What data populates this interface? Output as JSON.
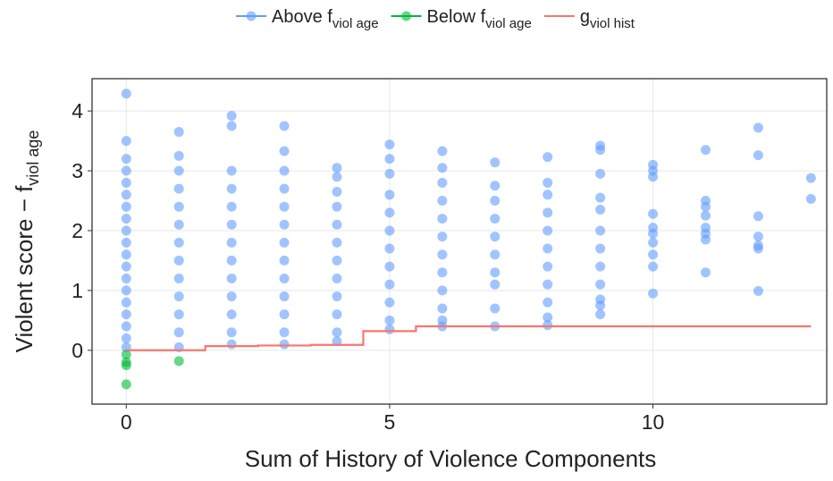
{
  "chart_data": {
    "type": "scatter",
    "xlabel": "Sum of History of Violence Components",
    "ylabel": "Violent score − f",
    "ylabel_sub": "viol age",
    "xlim": [
      -0.65,
      13.3
    ],
    "xticks": [
      0,
      5,
      10
    ],
    "ylim": [
      -0.9,
      4.54
    ],
    "yticks": [
      0,
      1,
      2,
      3,
      4
    ],
    "grid": true,
    "legend": "top",
    "series": [
      {
        "name": "Above f",
        "name_sub": "viol age",
        "color": "#619cff",
        "kind": "points",
        "x": [
          0,
          0,
          0,
          0,
          0,
          0,
          0,
          0,
          0,
          0,
          0,
          0,
          0,
          0,
          0,
          0,
          0,
          0,
          0,
          1,
          1,
          1,
          1,
          1,
          1,
          1,
          1,
          1,
          1,
          1,
          1,
          1,
          2,
          2,
          2,
          2,
          2,
          2,
          2,
          2,
          2,
          2,
          2,
          2,
          2,
          3,
          3,
          3,
          3,
          3,
          3,
          3,
          3,
          3,
          3,
          3,
          3,
          3,
          4,
          4,
          4,
          4,
          4,
          4,
          4,
          4,
          4,
          4,
          4,
          4,
          5,
          5,
          5,
          5,
          5,
          5,
          5,
          5,
          5,
          5,
          5,
          5,
          6,
          6,
          6,
          6,
          6,
          6,
          6,
          6,
          6,
          6,
          6,
          6,
          7,
          7,
          7,
          7,
          7,
          7,
          7,
          7,
          7,
          7,
          8,
          8,
          8,
          8,
          8,
          8,
          8,
          8,
          8,
          8,
          8,
          9,
          9,
          9,
          9,
          9,
          9,
          9,
          9,
          9,
          9,
          9,
          9,
          10,
          10,
          10,
          10,
          10,
          10,
          10,
          10,
          10,
          10,
          11,
          11,
          11,
          11,
          11,
          11,
          11,
          11,
          12,
          12,
          12,
          12,
          12,
          12,
          12,
          13,
          13
        ],
        "values": [
          4.29,
          3.5,
          3.2,
          3.0,
          2.8,
          2.6,
          2.4,
          2.2,
          2.0,
          1.8,
          1.6,
          1.4,
          1.2,
          1.0,
          0.8,
          0.6,
          0.4,
          0.2,
          0.05,
          3.65,
          3.25,
          3.0,
          2.7,
          2.4,
          2.1,
          1.8,
          1.5,
          1.2,
          0.9,
          0.6,
          0.3,
          0.05,
          3.92,
          3.75,
          3.0,
          2.7,
          2.4,
          2.1,
          1.8,
          1.5,
          1.2,
          0.9,
          0.6,
          0.3,
          0.1,
          3.75,
          3.33,
          3.0,
          2.7,
          2.4,
          2.1,
          1.8,
          1.5,
          1.2,
          0.9,
          0.6,
          0.3,
          0.1,
          3.05,
          2.9,
          2.65,
          2.4,
          2.1,
          1.8,
          1.5,
          1.2,
          0.9,
          0.6,
          0.3,
          0.15,
          3.44,
          3.2,
          2.95,
          2.6,
          2.3,
          2.0,
          1.7,
          1.4,
          1.1,
          0.8,
          0.5,
          0.35,
          3.33,
          3.05,
          2.8,
          2.5,
          2.2,
          1.9,
          1.6,
          1.3,
          1.0,
          0.7,
          0.5,
          0.4,
          3.14,
          2.75,
          2.5,
          2.2,
          1.9,
          1.6,
          1.3,
          1.1,
          0.7,
          0.4,
          3.23,
          2.8,
          2.6,
          2.3,
          2.0,
          1.7,
          1.4,
          1.1,
          0.8,
          0.55,
          0.42,
          3.42,
          3.35,
          2.95,
          2.55,
          2.35,
          2.0,
          1.7,
          1.4,
          1.1,
          0.85,
          0.75,
          0.6,
          3.1,
          3.0,
          2.9,
          2.28,
          2.05,
          1.95,
          1.8,
          1.6,
          1.4,
          0.95,
          3.35,
          2.5,
          2.4,
          2.25,
          2.05,
          1.95,
          1.85,
          1.3,
          3.72,
          3.26,
          2.24,
          1.9,
          1.75,
          1.7,
          0.99,
          2.88,
          2.53
        ]
      },
      {
        "name": "Below f",
        "name_sub": "viol age",
        "color": "#00ba38",
        "kind": "points",
        "x": [
          0,
          0,
          0,
          0,
          1
        ],
        "values": [
          -0.07,
          -0.2,
          -0.25,
          -0.57,
          -0.18
        ]
      },
      {
        "name": "g",
        "name_sub": "viol hist",
        "color": "#f8766d",
        "kind": "step-mid",
        "x": [
          0,
          1,
          2,
          3,
          4,
          5,
          6,
          7,
          8,
          9,
          10,
          11,
          12,
          13
        ],
        "values": [
          0,
          0,
          0.07,
          0.08,
          0.09,
          0.32,
          0.4,
          0.4,
          0.4,
          0.4,
          0.4,
          0.4,
          0.4,
          0.4
        ]
      }
    ]
  }
}
